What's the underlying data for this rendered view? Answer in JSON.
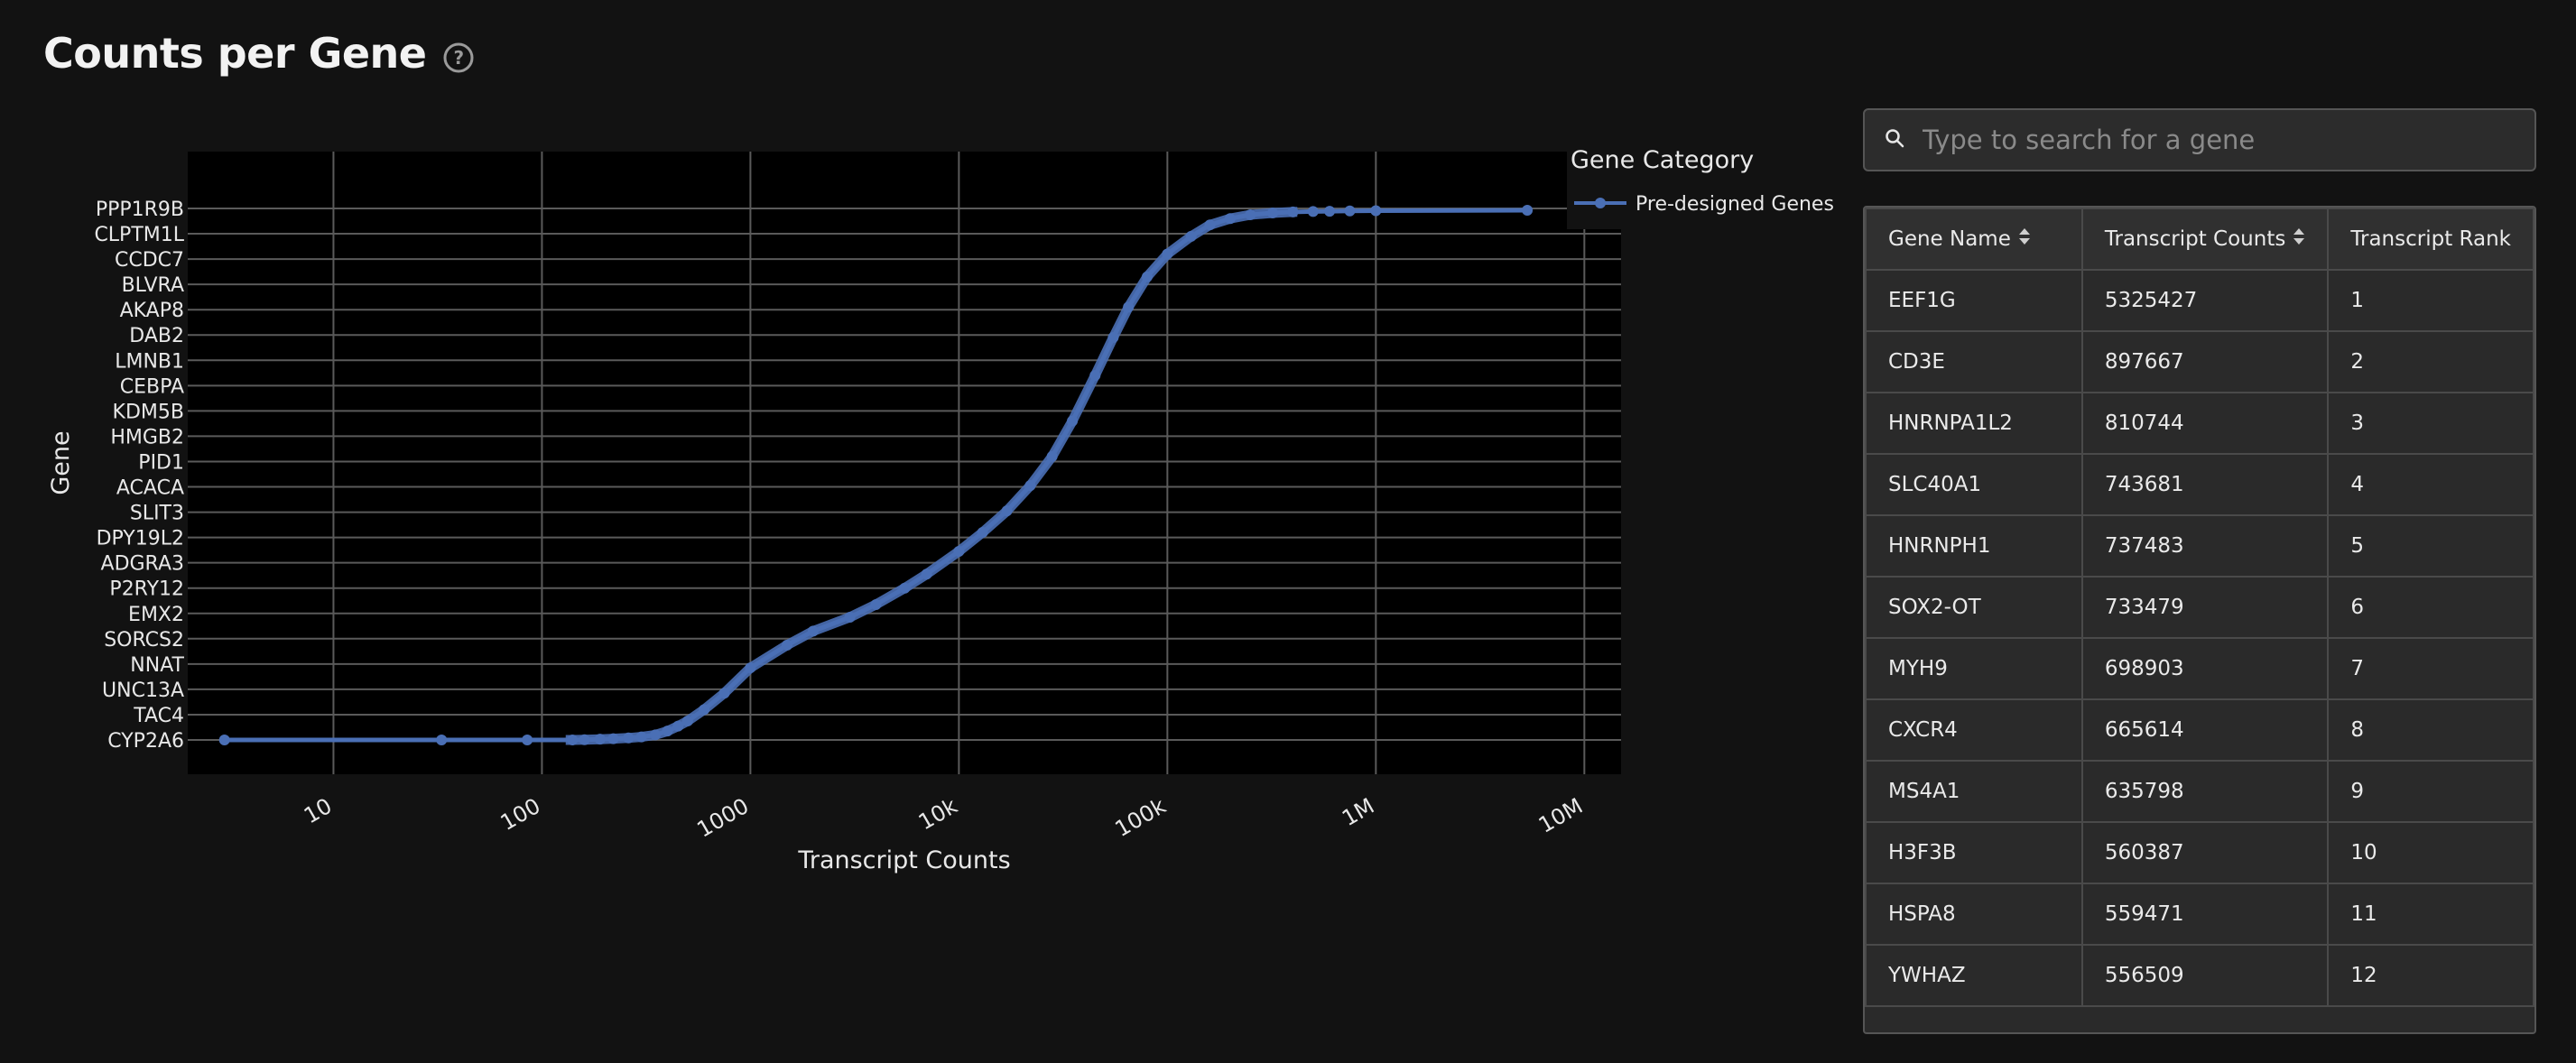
{
  "header": {
    "title": "Counts per Gene"
  },
  "search": {
    "placeholder": "Type to search for a gene"
  },
  "table": {
    "columns": [
      "Gene Name",
      "Transcript Counts",
      "Transcript Rank"
    ],
    "rows": [
      [
        "EEF1G",
        "5325427",
        "1"
      ],
      [
        "CD3E",
        "897667",
        "2"
      ],
      [
        "HNRNPA1L2",
        "810744",
        "3"
      ],
      [
        "SLC40A1",
        "743681",
        "4"
      ],
      [
        "HNRNPH1",
        "737483",
        "5"
      ],
      [
        "SOX2-OT",
        "733479",
        "6"
      ],
      [
        "MYH9",
        "698903",
        "7"
      ],
      [
        "CXCR4",
        "665614",
        "8"
      ],
      [
        "MS4A1",
        "635798",
        "9"
      ],
      [
        "H3F3B",
        "560387",
        "10"
      ],
      [
        "HSPA8",
        "559471",
        "11"
      ],
      [
        "YWHAZ",
        "556509",
        "12"
      ]
    ]
  },
  "colors": {
    "line": "#4a6fb5",
    "plot_bg": "#000000",
    "page_bg": "#121212",
    "grid": "#5a5a5a",
    "text": "#e8e8e8"
  },
  "chart_data": {
    "type": "line",
    "xlabel": "Transcript Counts",
    "ylabel": "Gene",
    "x_scale": "log",
    "xlim": [
      2,
      15000000
    ],
    "x_ticks": [
      10,
      100,
      1000,
      10000,
      100000,
      1000000,
      10000000
    ],
    "x_tick_labels": [
      "10",
      "100",
      "1000",
      "10k",
      "100k",
      "1M",
      "10M"
    ],
    "y_tick_labels": [
      "PPP1R9B",
      "CLPTM1L",
      "CCDC7",
      "BLVRA",
      "AKAP8",
      "DAB2",
      "LMNB1",
      "CEBPA",
      "KDM5B",
      "HMGB2",
      "PID1",
      "ACACA",
      "SLIT3",
      "DPY19L2",
      "ADGRA3",
      "P2RY12",
      "EMX2",
      "SORCS2",
      "NNAT",
      "UNC13A",
      "TAC4",
      "CYP2A6"
    ],
    "grid": true,
    "legend": {
      "title": "Gene Category",
      "position": "top-right",
      "entries": [
        "Pre-designed Genes"
      ]
    },
    "series": [
      {
        "name": "Pre-designed Genes",
        "color": "#4a6fb5",
        "x": [
          3,
          33,
          85,
          140,
          160,
          190,
          220,
          260,
          300,
          350,
          400,
          450,
          500,
          600,
          750,
          1000,
          1500,
          2000,
          3000,
          4000,
          5500,
          7000,
          10000,
          13000,
          17000,
          22000,
          28000,
          35000,
          45000,
          55000,
          65000,
          80000,
          100000,
          130000,
          160000,
          200000,
          250000,
          320000,
          400000,
          500000,
          600000,
          750000,
          1000000,
          5325427
        ],
        "y": [
          0,
          0,
          0,
          0,
          0.01,
          0.03,
          0.05,
          0.08,
          0.12,
          0.2,
          0.35,
          0.55,
          0.75,
          1.2,
          1.85,
          2.85,
          3.75,
          4.3,
          4.85,
          5.35,
          6.0,
          6.55,
          7.45,
          8.2,
          9.05,
          10.05,
          11.2,
          12.6,
          14.4,
          15.9,
          17.1,
          18.3,
          19.2,
          19.9,
          20.35,
          20.6,
          20.75,
          20.82,
          20.86,
          20.88,
          20.89,
          20.9,
          20.91,
          20.93
        ]
      }
    ]
  }
}
